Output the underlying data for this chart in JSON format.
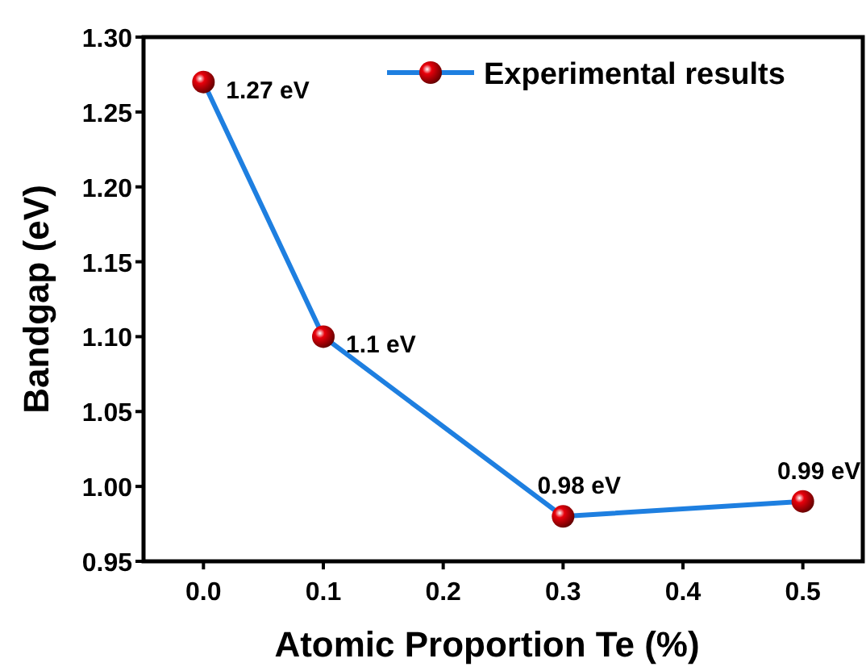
{
  "chart_data": {
    "type": "line",
    "xlabel": "Atomic Proportion Te (%)",
    "ylabel": "Bandgap (eV)",
    "x": [
      0.0,
      0.1,
      0.3,
      0.5
    ],
    "series": [
      {
        "name": "Experimental results",
        "color": "#1e7fe0",
        "values": [
          1.27,
          1.1,
          0.98,
          0.99
        ],
        "colors": [
          "#e8000b",
          "#e8000b",
          "#e8000b",
          "#e8000b"
        ],
        "value_labels": [
          "1.27 eV",
          "1.1 eV",
          "0.98 eV",
          "0.99 eV"
        ]
      }
    ],
    "xlim": [
      -0.05,
      0.55
    ],
    "xticks": [
      {
        "value": 0,
        "label": "0.0"
      },
      0.1,
      0.2,
      0.3,
      0.4,
      0.5
    ],
    "ylim": [
      0.95,
      1.3
    ],
    "yticks": [
      {
        "value": 0.95,
        "label": "0.95"
      },
      {
        "value": 1.0,
        "label": "1.00"
      },
      {
        "value": 1.05,
        "label": "1.05"
      },
      {
        "value": 1.1,
        "label": "1.10"
      },
      {
        "value": 1.15,
        "label": "1.15"
      },
      {
        "value": 1.2,
        "label": "1.20"
      },
      {
        "value": 1.25,
        "label": "1.25"
      },
      {
        "value": 1.3,
        "label": "1.30"
      }
    ],
    "marker": "circle",
    "line_style": "solid",
    "legend": "top right",
    "grid": false
  }
}
